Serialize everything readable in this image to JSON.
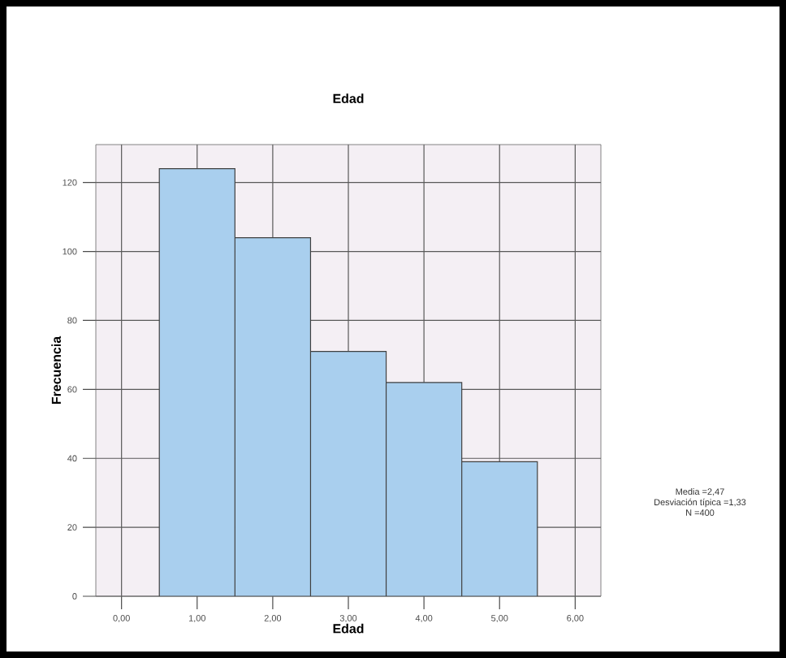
{
  "chart_data": {
    "type": "histogram",
    "title": "Edad",
    "xlabel": "Edad",
    "ylabel": "Frecuencia",
    "bins": [
      0.5,
      1.5,
      2.5,
      3.5,
      4.5,
      5.5
    ],
    "values": [
      124,
      104,
      71,
      62,
      39
    ],
    "color": "#a9cfee",
    "xlim": [
      -0.34,
      6.34
    ],
    "ylim": [
      0,
      131
    ],
    "xticks": [
      {
        "value": 0,
        "label": "0,00"
      },
      {
        "value": 1,
        "label": "1,00"
      },
      {
        "value": 2,
        "label": "2,00"
      },
      {
        "value": 3,
        "label": "3,00"
      },
      {
        "value": 4,
        "label": "4,00"
      },
      {
        "value": 5,
        "label": "5,00"
      },
      {
        "value": 6,
        "label": "6,00"
      }
    ],
    "yticks": [
      0,
      20,
      40,
      60,
      80,
      100,
      120
    ],
    "grid": true,
    "annotations": [
      "Media =2,47",
      "Desviación típica =1,33",
      "N =400"
    ]
  }
}
